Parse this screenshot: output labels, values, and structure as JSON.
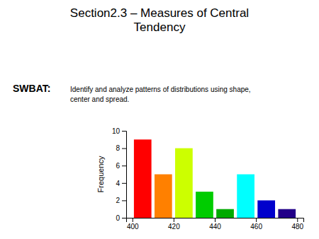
{
  "chart_data": {
    "type": "bar",
    "title": "Section2.3 – Measures of Central\nTendency",
    "annotations": [
      "SWBAT:",
      "Identify and analyze patterns of distributions using shape,\ncenter and spread."
    ],
    "x": [
      405,
      415,
      425,
      435,
      445,
      455,
      465,
      475
    ],
    "values": [
      9,
      5,
      8,
      3,
      1,
      5,
      2,
      1
    ],
    "colors": [
      "#ff0000",
      "#ff8000",
      "#ccff00",
      "#00cc00",
      "#00aa00",
      "#00ffff",
      "#0000cc",
      "#220088"
    ],
    "ylabel": "Frequency",
    "xlim": [
      397,
      483
    ],
    "ylim": [
      0,
      10
    ],
    "xticks": [
      400,
      420,
      440,
      460,
      480
    ],
    "yticks": [
      0,
      2,
      4,
      6,
      8,
      10
    ],
    "grid": false
  }
}
